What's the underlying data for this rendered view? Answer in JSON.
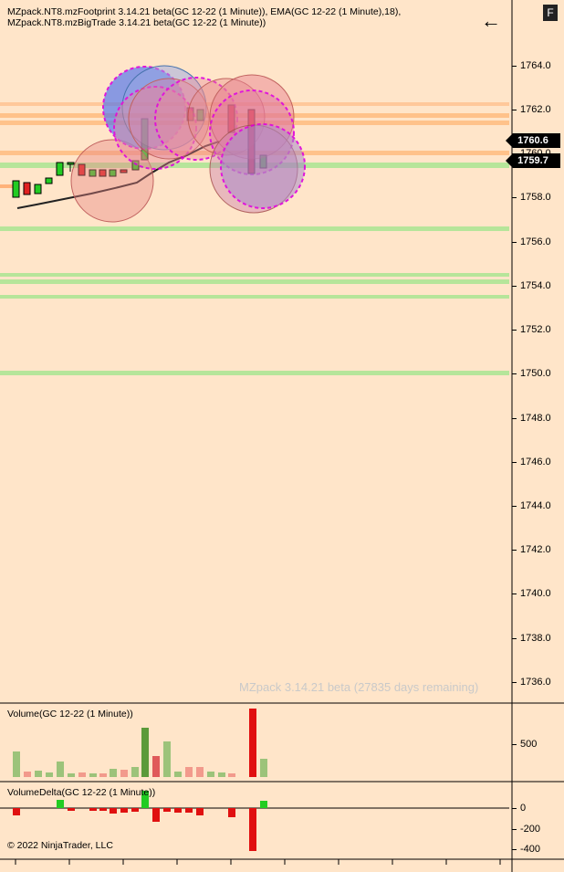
{
  "header": {
    "line1": "MZpack.NT8.mzFootprint 3.14.21 beta(GC 12-22 (1 Minute)), EMA(GC 12-22 (1 Minute),18),",
    "line2": "MZpack.NT8.mzBigTrade 3.14.21 beta(GC 12-22 (1 Minute))"
  },
  "toolbar": {
    "back_icon": "left-arrow-icon",
    "f_label": "F"
  },
  "price_axis": {
    "ticks": [
      "1764.0",
      "1762.0",
      "1760.0",
      "1758.0",
      "1756.0",
      "1754.0",
      "1752.0",
      "1750.0",
      "1748.0",
      "1746.0",
      "1744.0",
      "1742.0",
      "1740.0",
      "1738.0",
      "1736.0"
    ],
    "price_tags": [
      "1760.6",
      "1759.7"
    ]
  },
  "watermark": "MZpack 3.14.21 beta  (27835 days remaining)",
  "volume_panel": {
    "title": "Volume(GC 12-22 (1 Minute))",
    "ticks": [
      "500"
    ]
  },
  "delta_panel": {
    "title": "VolumeDelta(GC 12-22 (1 Minute))",
    "ticks": [
      "0",
      "-200",
      "-400"
    ]
  },
  "copyright": "© 2022 NinjaTrader, LLC",
  "colors": {
    "background": "#ffe5c9",
    "up": "#22cc22",
    "down": "#e02020",
    "level_green": "#b6e59a",
    "level_orange": "#ffc28a"
  }
}
